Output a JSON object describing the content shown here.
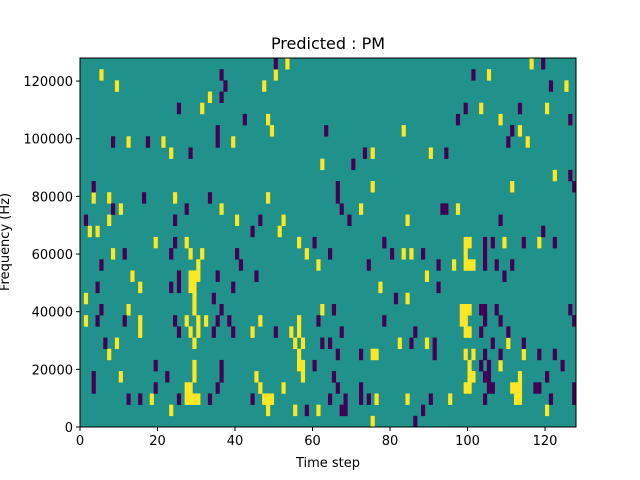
{
  "chart_data": {
    "type": "heatmap",
    "title": "Predicted : PM",
    "xlabel": "Time step",
    "ylabel": "Frequency (Hz)",
    "xlim": [
      0,
      128
    ],
    "ylim": [
      0,
      128000
    ],
    "grid": false,
    "n_cols": 128,
    "n_rows": 33,
    "xticks": [
      0,
      20,
      40,
      60,
      80,
      100,
      120
    ],
    "xtick_labels": [
      "0",
      "20",
      "40",
      "60",
      "80",
      "100",
      "120"
    ],
    "yticks": [
      0,
      20000,
      40000,
      60000,
      80000,
      100000,
      120000
    ],
    "ytick_labels": [
      "0",
      "20000",
      "40000",
      "60000",
      "80000",
      "100000",
      "120000"
    ],
    "colors": {
      "low": "#440154",
      "mid": "#21918c",
      "high": "#fde725"
    },
    "default_value": 0,
    "cells_note_units": "[time_step_index, frequency_bin_index]",
    "cells_high": [
      [
        5,
        31
      ],
      [
        9,
        30
      ],
      [
        31,
        28
      ],
      [
        12,
        25
      ],
      [
        21,
        25
      ],
      [
        23,
        24
      ],
      [
        3,
        20
      ],
      [
        7,
        20
      ],
      [
        24,
        20
      ],
      [
        10,
        19
      ],
      [
        7,
        18
      ],
      [
        2,
        17
      ],
      [
        4,
        17
      ],
      [
        19,
        16
      ],
      [
        27,
        16
      ],
      [
        53,
        32
      ],
      [
        50,
        31
      ],
      [
        47,
        30
      ],
      [
        33,
        29
      ],
      [
        48,
        27
      ],
      [
        49,
        26
      ],
      [
        39,
        25
      ],
      [
        62,
        23
      ],
      [
        48,
        20
      ],
      [
        36,
        19
      ],
      [
        40,
        18
      ],
      [
        52,
        18
      ],
      [
        51,
        17
      ],
      [
        56,
        16
      ],
      [
        83,
        26
      ],
      [
        75,
        24
      ],
      [
        90,
        24
      ],
      [
        75,
        21
      ],
      [
        72,
        19
      ],
      [
        84,
        18
      ],
      [
        116,
        32
      ],
      [
        105,
        31
      ],
      [
        125,
        30
      ],
      [
        103,
        28
      ],
      [
        120,
        28
      ],
      [
        108,
        27
      ],
      [
        113,
        26
      ],
      [
        115,
        25
      ],
      [
        122,
        22
      ],
      [
        111,
        21
      ],
      [
        97,
        19
      ],
      [
        99,
        16
      ],
      [
        100,
        16
      ],
      [
        109,
        16
      ],
      [
        118,
        16
      ],
      [
        8,
        15
      ],
      [
        28,
        15
      ],
      [
        31,
        15
      ],
      [
        30,
        14
      ],
      [
        13,
        13
      ],
      [
        28,
        13
      ],
      [
        29,
        13
      ],
      [
        30,
        13
      ],
      [
        15,
        12
      ],
      [
        28,
        12
      ],
      [
        29,
        12
      ],
      [
        1,
        11
      ],
      [
        29,
        11
      ],
      [
        12,
        10
      ],
      [
        29,
        10
      ],
      [
        1,
        9
      ],
      [
        15,
        9
      ],
      [
        27,
        9
      ],
      [
        30,
        9
      ],
      [
        15,
        8
      ],
      [
        28,
        8
      ],
      [
        30,
        8
      ],
      [
        9,
        7
      ],
      [
        29,
        7
      ],
      [
        7,
        6
      ],
      [
        29,
        5
      ],
      [
        10,
        4
      ],
      [
        29,
        4
      ],
      [
        27,
        3
      ],
      [
        28,
        3
      ],
      [
        18,
        2
      ],
      [
        27,
        2
      ],
      [
        28,
        2
      ],
      [
        29,
        2
      ],
      [
        30,
        2
      ],
      [
        23,
        1
      ],
      [
        58,
        15
      ],
      [
        61,
        14
      ],
      [
        62,
        10
      ],
      [
        32,
        9
      ],
      [
        46,
        9
      ],
      [
        56,
        9
      ],
      [
        44,
        8
      ],
      [
        54,
        8
      ],
      [
        56,
        8
      ],
      [
        55,
        7
      ],
      [
        57,
        7
      ],
      [
        56,
        6
      ],
      [
        56,
        5
      ],
      [
        57,
        5
      ],
      [
        45,
        4
      ],
      [
        57,
        4
      ],
      [
        46,
        3
      ],
      [
        52,
        3
      ],
      [
        47,
        2
      ],
      [
        48,
        2
      ],
      [
        49,
        2
      ],
      [
        48,
        1
      ],
      [
        55,
        1
      ],
      [
        61,
        1
      ],
      [
        83,
        15
      ],
      [
        85,
        15
      ],
      [
        89,
        13
      ],
      [
        77,
        12
      ],
      [
        84,
        11
      ],
      [
        82,
        7
      ],
      [
        89,
        7
      ],
      [
        75,
        6
      ],
      [
        76,
        6
      ],
      [
        76,
        2
      ],
      [
        84,
        2
      ],
      [
        95,
        2
      ],
      [
        75,
        0
      ],
      [
        99,
        15
      ],
      [
        96,
        14
      ],
      [
        99,
        14
      ],
      [
        100,
        14
      ],
      [
        101,
        14
      ],
      [
        98,
        10
      ],
      [
        99,
        10
      ],
      [
        100,
        10
      ],
      [
        98,
        9
      ],
      [
        99,
        9
      ],
      [
        99,
        8
      ],
      [
        100,
        8
      ],
      [
        110,
        7
      ],
      [
        99,
        6
      ],
      [
        101,
        6
      ],
      [
        114,
        6
      ],
      [
        100,
        5
      ],
      [
        108,
        5
      ],
      [
        100,
        4
      ],
      [
        101,
        4
      ],
      [
        113,
        4
      ],
      [
        99,
        3
      ],
      [
        100,
        3
      ],
      [
        111,
        3
      ],
      [
        112,
        3
      ],
      [
        113,
        3
      ],
      [
        112,
        2
      ],
      [
        113,
        2
      ],
      [
        120,
        1
      ]
    ],
    "cells_low": [
      [
        25,
        28
      ],
      [
        8,
        25
      ],
      [
        17,
        25
      ],
      [
        28,
        24
      ],
      [
        3,
        21
      ],
      [
        16,
        20
      ],
      [
        8,
        19
      ],
      [
        27,
        19
      ],
      [
        1,
        18
      ],
      [
        24,
        18
      ],
      [
        24,
        16
      ],
      [
        50,
        32
      ],
      [
        36,
        31
      ],
      [
        37,
        30
      ],
      [
        36,
        29
      ],
      [
        42,
        27
      ],
      [
        35,
        26
      ],
      [
        35,
        25
      ],
      [
        63,
        26
      ],
      [
        33,
        20
      ],
      [
        46,
        18
      ],
      [
        44,
        17
      ],
      [
        60,
        16
      ],
      [
        73,
        24
      ],
      [
        94,
        24
      ],
      [
        70,
        23
      ],
      [
        66,
        21
      ],
      [
        66,
        20
      ],
      [
        67,
        19
      ],
      [
        93,
        19
      ],
      [
        94,
        19
      ],
      [
        69,
        18
      ],
      [
        78,
        16
      ],
      [
        119,
        32
      ],
      [
        101,
        31
      ],
      [
        121,
        30
      ],
      [
        99,
        28
      ],
      [
        113,
        28
      ],
      [
        97,
        27
      ],
      [
        126,
        27
      ],
      [
        111,
        26
      ],
      [
        110,
        25
      ],
      [
        126,
        22
      ],
      [
        127,
        21
      ],
      [
        108,
        18
      ],
      [
        119,
        17
      ],
      [
        104,
        16
      ],
      [
        106,
        16
      ],
      [
        114,
        16
      ],
      [
        122,
        16
      ],
      [
        11,
        15
      ],
      [
        23,
        15
      ],
      [
        5,
        14
      ],
      [
        25,
        13
      ],
      [
        4,
        12
      ],
      [
        23,
        12
      ],
      [
        25,
        12
      ],
      [
        5,
        10
      ],
      [
        4,
        9
      ],
      [
        11,
        9
      ],
      [
        24,
        9
      ],
      [
        25,
        8
      ],
      [
        6,
        7
      ],
      [
        19,
        5
      ],
      [
        3,
        4
      ],
      [
        22,
        4
      ],
      [
        3,
        3
      ],
      [
        19,
        3
      ],
      [
        12,
        2
      ],
      [
        15,
        2
      ],
      [
        25,
        2
      ],
      [
        40,
        15
      ],
      [
        41,
        14
      ],
      [
        35,
        13
      ],
      [
        45,
        13
      ],
      [
        39,
        12
      ],
      [
        34,
        11
      ],
      [
        36,
        10
      ],
      [
        35,
        9
      ],
      [
        38,
        9
      ],
      [
        61,
        9
      ],
      [
        34,
        8
      ],
      [
        39,
        8
      ],
      [
        50,
        8
      ],
      [
        62,
        7
      ],
      [
        36,
        5
      ],
      [
        60,
        5
      ],
      [
        36,
        4
      ],
      [
        35,
        3
      ],
      [
        33,
        2
      ],
      [
        44,
        2
      ],
      [
        58,
        1
      ],
      [
        64,
        15
      ],
      [
        80,
        15
      ],
      [
        88,
        15
      ],
      [
        74,
        14
      ],
      [
        92,
        14
      ],
      [
        92,
        12
      ],
      [
        81,
        11
      ],
      [
        65,
        10
      ],
      [
        78,
        9
      ],
      [
        67,
        8
      ],
      [
        86,
        8
      ],
      [
        64,
        7
      ],
      [
        85,
        7
      ],
      [
        91,
        7
      ],
      [
        66,
        6
      ],
      [
        72,
        6
      ],
      [
        91,
        6
      ],
      [
        65,
        4
      ],
      [
        66,
        3
      ],
      [
        72,
        3
      ],
      [
        64,
        2
      ],
      [
        68,
        2
      ],
      [
        72,
        2
      ],
      [
        74,
        2
      ],
      [
        90,
        2
      ],
      [
        67,
        1
      ],
      [
        68,
        1
      ],
      [
        88,
        1
      ],
      [
        86,
        0
      ],
      [
        104,
        15
      ],
      [
        104,
        14
      ],
      [
        107,
        14
      ],
      [
        111,
        14
      ],
      [
        109,
        13
      ],
      [
        103,
        10
      ],
      [
        104,
        10
      ],
      [
        107,
        10
      ],
      [
        126,
        10
      ],
      [
        104,
        9
      ],
      [
        108,
        9
      ],
      [
        127,
        9
      ],
      [
        103,
        8
      ],
      [
        110,
        8
      ],
      [
        106,
        7
      ],
      [
        114,
        7
      ],
      [
        104,
        6
      ],
      [
        108,
        6
      ],
      [
        118,
        6
      ],
      [
        122,
        6
      ],
      [
        103,
        5
      ],
      [
        105,
        5
      ],
      [
        124,
        5
      ],
      [
        104,
        4
      ],
      [
        105,
        4
      ],
      [
        120,
        4
      ],
      [
        105,
        3
      ],
      [
        106,
        3
      ],
      [
        117,
        3
      ],
      [
        118,
        3
      ],
      [
        127,
        3
      ],
      [
        104,
        2
      ],
      [
        121,
        2
      ],
      [
        127,
        2
      ]
    ]
  }
}
